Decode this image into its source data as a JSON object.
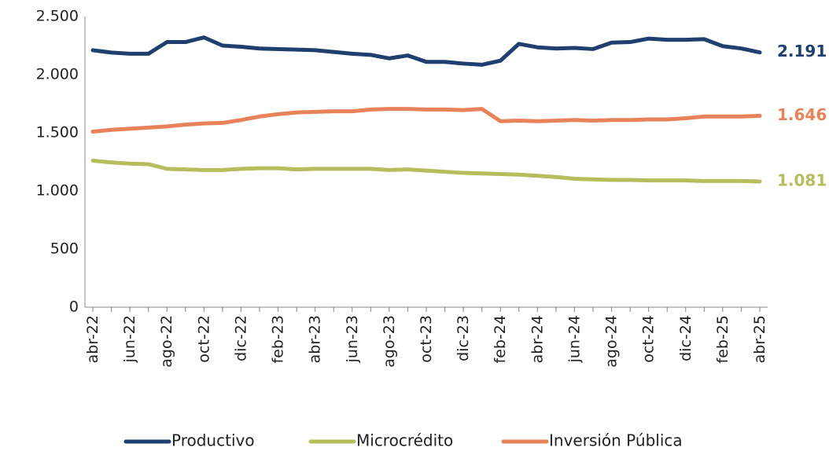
{
  "chart_data": {
    "type": "line",
    "categories": [
      "abr-22",
      null,
      "jun-22",
      null,
      "ago-22",
      null,
      "oct-22",
      null,
      "dic-22",
      null,
      "feb-23",
      null,
      "abr-23",
      null,
      "jun-23",
      null,
      "ago-23",
      null,
      "oct-23",
      null,
      "dic-23",
      null,
      "feb-24",
      null,
      "abr-24",
      null,
      "jun-24",
      null,
      "ago-24",
      null,
      "oct-24",
      null,
      "dic-24",
      null,
      "feb-25",
      null,
      "abr-25"
    ],
    "series": [
      {
        "name": "Productivo",
        "color": "#1f3f6e",
        "values": [
          2210,
          2190,
          2180,
          2180,
          2280,
          2280,
          2320,
          2250,
          2240,
          2225,
          2220,
          2215,
          2210,
          2195,
          2180,
          2170,
          2140,
          2165,
          2110,
          2110,
          2095,
          2085,
          2120,
          2265,
          2235,
          2225,
          2230,
          2220,
          2275,
          2280,
          2310,
          2300,
          2300,
          2305,
          2245,
          2225,
          2191
        ],
        "value_labels": [
          null,
          null,
          null,
          null,
          null,
          null,
          null,
          null,
          null,
          null,
          null,
          null,
          null,
          null,
          null,
          null,
          null,
          null,
          null,
          null,
          null,
          null,
          null,
          null,
          null,
          null,
          null,
          null,
          null,
          null,
          null,
          null,
          null,
          null,
          null,
          null,
          "2.191"
        ]
      },
      {
        "name": "Microcrédito",
        "color": "#b5bd5c",
        "values": [
          1260,
          1245,
          1235,
          1230,
          1190,
          1185,
          1180,
          1180,
          1190,
          1195,
          1195,
          1185,
          1190,
          1190,
          1190,
          1190,
          1180,
          1185,
          1175,
          1165,
          1155,
          1150,
          1145,
          1140,
          1130,
          1120,
          1105,
          1100,
          1095,
          1095,
          1090,
          1090,
          1090,
          1085,
          1085,
          1085,
          1081
        ],
        "value_labels": [
          null,
          null,
          null,
          null,
          null,
          null,
          null,
          null,
          null,
          null,
          null,
          null,
          null,
          null,
          null,
          null,
          null,
          null,
          null,
          null,
          null,
          null,
          null,
          null,
          null,
          null,
          null,
          null,
          null,
          null,
          null,
          null,
          null,
          null,
          null,
          null,
          "1.081"
        ]
      },
      {
        "name": "Inversión Pública",
        "color": "#e8825a",
        "values": [
          1510,
          1525,
          1535,
          1545,
          1555,
          1570,
          1580,
          1585,
          1610,
          1640,
          1660,
          1675,
          1680,
          1685,
          1685,
          1700,
          1705,
          1705,
          1700,
          1700,
          1695,
          1705,
          1600,
          1605,
          1600,
          1605,
          1610,
          1605,
          1610,
          1610,
          1615,
          1615,
          1625,
          1640,
          1640,
          1640,
          1646
        ],
        "value_labels": [
          null,
          null,
          null,
          null,
          null,
          null,
          null,
          null,
          null,
          null,
          null,
          null,
          null,
          null,
          null,
          null,
          null,
          null,
          null,
          null,
          null,
          null,
          null,
          null,
          null,
          null,
          null,
          null,
          null,
          null,
          null,
          null,
          null,
          null,
          null,
          null,
          "1.646"
        ]
      }
    ],
    "ylim": [
      0,
      2500
    ],
    "yticks": [
      0,
      500,
      {
        "value": 1000,
        "label": "1.000"
      },
      {
        "value": 1500,
        "label": "1.500"
      },
      {
        "value": 2000,
        "label": "2.000"
      },
      {
        "value": 2500,
        "label": "2.500"
      }
    ],
    "legend": "bottom"
  }
}
